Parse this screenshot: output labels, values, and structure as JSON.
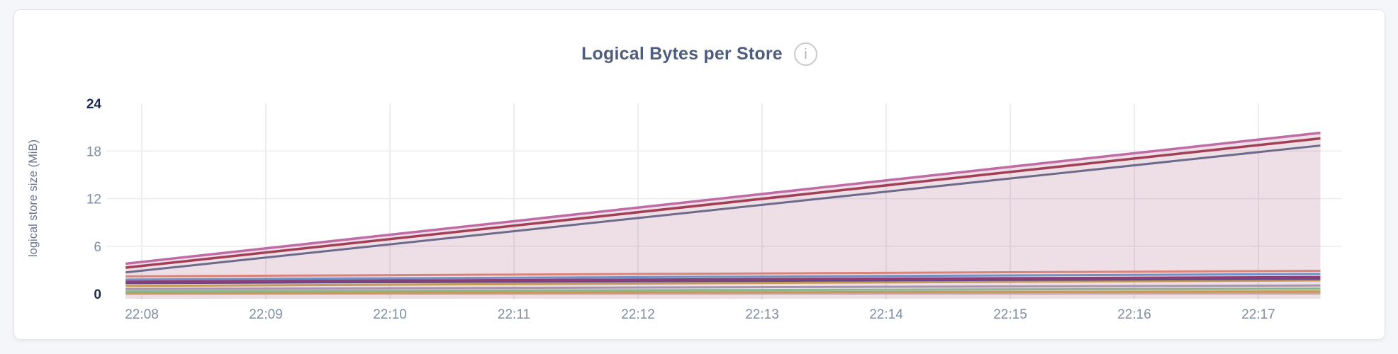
{
  "header": {
    "title": "Logical Bytes per Store",
    "info_icon": "i"
  },
  "colors": {
    "page_background": "#f4f6fa",
    "card_background": "#ffffff",
    "card_border": "#e5e6ea",
    "title": "#4e5d7b",
    "h_gridline": "#ececef",
    "v_gridline": "#e7e7ea",
    "tick_label": "#7f8da3",
    "tick_label_bold": "#1b2a4e",
    "axis_label": "#66758f"
  },
  "chart_data": {
    "type": "area",
    "title": "Logical Bytes per Store",
    "xlabel": "",
    "ylabel": "logical store size (MiB)",
    "ylim": [
      0,
      24
    ],
    "y_ticks": [
      0,
      6,
      12,
      18,
      24
    ],
    "y_gridlines": [
      6,
      12,
      18
    ],
    "grid": true,
    "legend_position": "none",
    "x_unit": "time (HH:MM)",
    "x_ticks": [
      {
        "value": 8,
        "label": "22:08"
      },
      {
        "value": 9,
        "label": "22:09"
      },
      {
        "value": 10,
        "label": "22:10"
      },
      {
        "value": 11,
        "label": "22:11"
      },
      {
        "value": 12,
        "label": "22:12"
      },
      {
        "value": 13,
        "label": "22:13"
      },
      {
        "value": 14,
        "label": "22:14"
      },
      {
        "value": 15,
        "label": "22:15"
      },
      {
        "value": 16,
        "label": "22:16"
      },
      {
        "value": 17,
        "label": "22:17"
      }
    ],
    "x_domain": [
      7.87,
      17.5
    ],
    "series": [
      {
        "color": "#cba39f",
        "width": 3,
        "values": [
          0.0,
          0.05
        ]
      },
      {
        "color": "#c59a57",
        "width": 3,
        "values": [
          0.1,
          0.3
        ]
      },
      {
        "color": "#8bb68d",
        "width": 3,
        "values": [
          0.3,
          0.65
        ]
      },
      {
        "color": "#a795ad",
        "width": 3,
        "values": [
          0.6,
          1.05
        ]
      },
      {
        "color": "#c59a57",
        "width": 3,
        "values": [
          1.0,
          1.7
        ]
      },
      {
        "color": "#5f4b8c",
        "width": 3,
        "values": [
          1.35,
          1.9
        ]
      },
      {
        "color": "#8e3d75",
        "width": 3.5,
        "values": [
          1.55,
          2.1
        ]
      },
      {
        "color": "#7191c5",
        "width": 3,
        "values": [
          1.8,
          2.5
        ]
      },
      {
        "color": "#d98379",
        "width": 3,
        "values": [
          2.2,
          2.9
        ]
      },
      {
        "color": "#6e6a8c",
        "width": 3,
        "values": [
          2.7,
          18.7
        ]
      },
      {
        "color": "#a23f57",
        "width": 3.5,
        "values": [
          3.3,
          19.6
        ]
      },
      {
        "color": "#bf6ba6",
        "width": 3.5,
        "values": [
          3.8,
          20.3
        ],
        "area": true,
        "area_fill": "#a85c82",
        "area_opacity": 0.2
      }
    ]
  }
}
